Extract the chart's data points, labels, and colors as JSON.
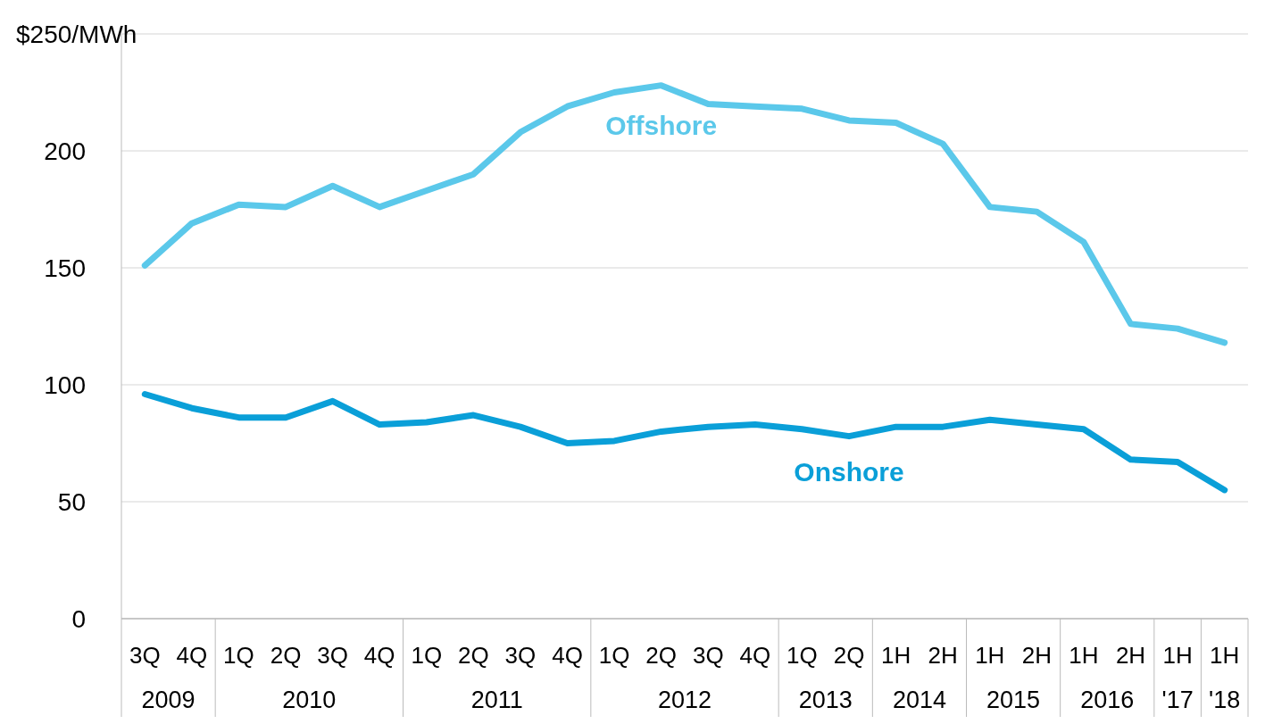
{
  "chart_data": {
    "type": "line",
    "categories": [
      "3Q",
      "4Q",
      "1Q",
      "2Q",
      "3Q",
      "4Q",
      "1Q",
      "2Q",
      "3Q",
      "4Q",
      "1Q",
      "2Q",
      "3Q",
      "4Q",
      "1Q",
      "2Q",
      "1H",
      "2H",
      "1H",
      "2H",
      "1H",
      "2H",
      "1H",
      "1H"
    ],
    "series": [
      {
        "name": "Offshore",
        "color": "#5bc8ea",
        "values": [
          151,
          169,
          177,
          176,
          185,
          176,
          183,
          190,
          208,
          219,
          225,
          228,
          220,
          219,
          218,
          213,
          212,
          203,
          176,
          174,
          161,
          126,
          124,
          118
        ]
      },
      {
        "name": "Onshore",
        "color": "#0a9fd8",
        "values": [
          96,
          90,
          86,
          86,
          93,
          83,
          84,
          87,
          82,
          75,
          76,
          80,
          82,
          83,
          81,
          78,
          82,
          82,
          85,
          83,
          81,
          68,
          67,
          55
        ]
      }
    ],
    "annotations": [
      "2009",
      "2010",
      "2011",
      "2012",
      "2013",
      "2014",
      "2015",
      "2016",
      "'17",
      "'18"
    ],
    "ylim": [
      0,
      250
    ],
    "yticks": [
      0,
      50,
      100,
      150,
      200,
      {
        "value": 250,
        "label": "$250/MWh"
      }
    ],
    "grid": "y",
    "marker": "none",
    "line_style": "solid"
  }
}
